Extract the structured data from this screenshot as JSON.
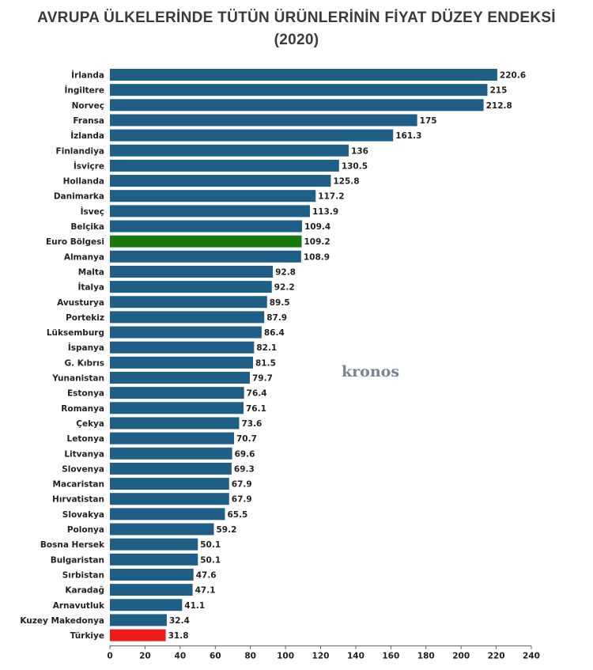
{
  "chart_data": {
    "type": "bar",
    "orientation": "horizontal",
    "title": "AVRUPA ÜLKELERİNDE TÜTÜN ÜRÜNLERİNİN FİYAT DÜZEY ENDEKSİ",
    "subtitle": "(2020)",
    "categories": [
      "İrlanda",
      "İngiltere",
      "Norveç",
      "Fransa",
      "İzlanda",
      "Finlandiya",
      "İsviçre",
      "Hollanda",
      "Danimarka",
      "İsveç",
      "Belçika",
      "Euro Bölgesi",
      "Almanya",
      "Malta",
      "İtalya",
      "Avusturya",
      "Portekiz",
      "Lüksemburg",
      "İspanya",
      "G. Kıbrıs",
      "Yunanistan",
      "Estonya",
      "Romanya",
      "Çekya",
      "Letonya",
      "Litvanya",
      "Slovenya",
      "Macaristan",
      "Hırvatistan",
      "Slovakya",
      "Polonya",
      "Bosna Hersek",
      "Bulgaristan",
      "Sırbistan",
      "Karadağ",
      "Arnavutluk",
      "Kuzey Makedonya",
      "Türkiye"
    ],
    "values": [
      220.6,
      215,
      212.8,
      175,
      161.3,
      136,
      130.5,
      125.8,
      117.2,
      113.9,
      109.4,
      109.2,
      108.9,
      92.8,
      92.2,
      89.5,
      87.9,
      86.4,
      82.1,
      81.5,
      79.7,
      76.4,
      76.1,
      73.6,
      70.7,
      69.6,
      69.3,
      67.9,
      67.9,
      65.5,
      59.2,
      50.1,
      50.1,
      47.6,
      47.1,
      41.1,
      32.4,
      31.8
    ],
    "value_labels": [
      "220.6",
      "215",
      "212.8",
      "175",
      "161.3",
      "136",
      "130.5",
      "125.8",
      "117.2",
      "113.9",
      "109.4",
      "109.2",
      "108.9",
      "92.8",
      "92.2",
      "89.5",
      "87.9",
      "86.4",
      "82.1",
      "81.5",
      "79.7",
      "76.4",
      "76.1",
      "73.6",
      "70.7",
      "69.6",
      "69.3",
      "67.9",
      "67.9",
      "65.5",
      "59.2",
      "50.1",
      "50.1",
      "47.6",
      "47.1",
      "41.1",
      "32.4",
      "31.8"
    ],
    "xlim": [
      0,
      240
    ],
    "xticks": [
      "0",
      "20",
      "40",
      "60",
      "80",
      "100",
      "120",
      "140",
      "160",
      "180",
      "200",
      "220",
      "240"
    ],
    "xlabel": "",
    "ylabel": "",
    "grid": false,
    "colors": {
      "default": "#1f5f87",
      "highlight": {
        "Euro Bölgesi": "#16790e",
        "Türkiye": "#ee1b1b"
      },
      "text": "#222222"
    }
  },
  "watermark": "kronos"
}
